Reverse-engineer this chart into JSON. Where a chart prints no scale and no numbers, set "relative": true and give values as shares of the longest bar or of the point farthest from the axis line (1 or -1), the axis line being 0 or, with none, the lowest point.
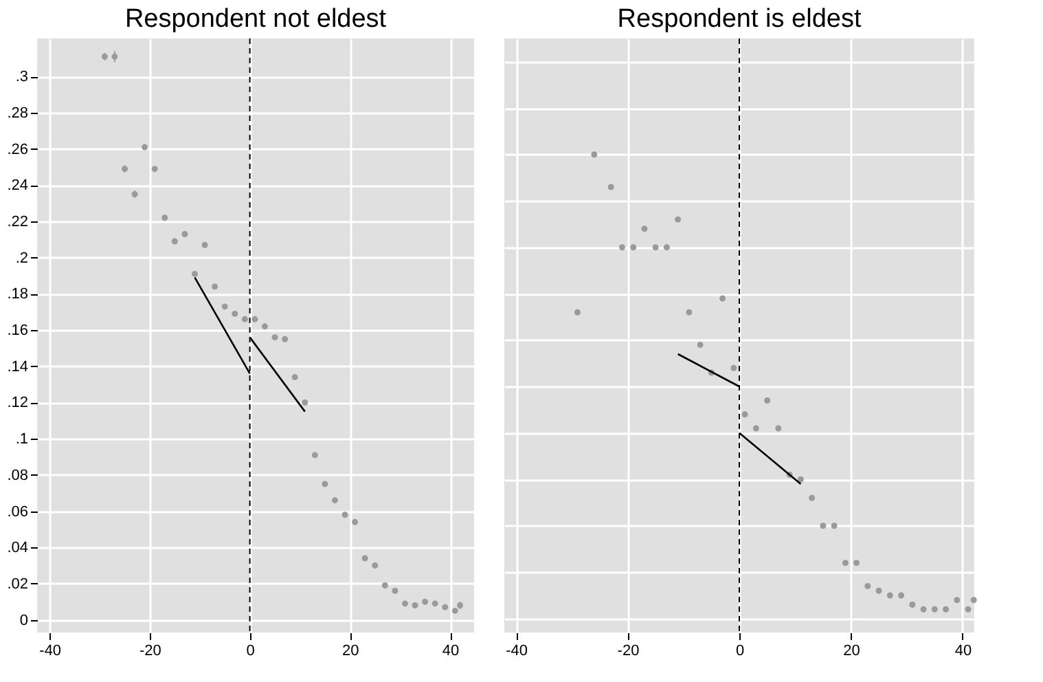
{
  "chart_data": [
    {
      "type": "scatter",
      "title": "Respondent not eldest",
      "marker": "circle",
      "grid": true,
      "xlim": [
        -42.5,
        44.8
      ],
      "ylim": [
        -0.007,
        0.321
      ],
      "xticks": [
        -40,
        -20,
        0,
        20,
        40
      ],
      "yticks": [
        0,
        {
          "value": 0.02,
          "label": ".02"
        },
        {
          "value": 0.04,
          "label": ".04"
        },
        {
          "value": 0.06,
          "label": ".06"
        },
        {
          "value": 0.08,
          "label": ".08"
        },
        {
          "value": 0.1,
          "label": ".1"
        },
        {
          "value": 0.12,
          "label": ".12"
        },
        {
          "value": 0.14,
          "label": ".14"
        },
        {
          "value": 0.16,
          "label": ".16"
        },
        {
          "value": 0.18,
          "label": ".18"
        },
        {
          "value": 0.2,
          "label": ".2"
        },
        {
          "value": 0.22,
          "label": ".22"
        },
        {
          "value": 0.24,
          "label": ".24"
        },
        {
          "value": 0.26,
          "label": ".26"
        },
        {
          "value": 0.28,
          "label": ".28"
        },
        {
          "value": 0.3,
          "label": ".3"
        }
      ],
      "ref_lines": [
        {
          "axis": "x",
          "value": 0,
          "color": "#000000",
          "line_style": "dashed"
        }
      ],
      "series": [
        {
          "color": "#9a9a9a",
          "x": [
            -29,
            -27,
            -25,
            -23,
            -21,
            -19,
            -17,
            -15,
            -13,
            -11,
            -9,
            -7,
            -5,
            -3,
            -1,
            1,
            3,
            5,
            7,
            9,
            11,
            13,
            15,
            17,
            19,
            21,
            23,
            25,
            27,
            29,
            31,
            33,
            35,
            37,
            39,
            41,
            42
          ],
          "values": [
            0.311,
            0.311,
            0.249,
            0.235,
            0.261,
            0.249,
            0.222,
            0.209,
            0.213,
            0.191,
            0.207,
            0.184,
            0.173,
            0.169,
            0.166,
            0.166,
            0.162,
            0.156,
            0.155,
            0.134,
            0.12,
            0.091,
            0.075,
            0.066,
            0.058,
            0.054,
            0.034,
            0.03,
            0.019,
            0.016,
            0.009,
            0.008,
            0.01,
            0.009,
            0.007,
            0.005,
            0.008
          ],
          "errors": [
            0.002,
            0.003,
            0.002,
            0.002,
            0.001,
            0.001,
            0.001,
            0.001,
            0.001,
            0.001,
            0.001,
            0.001,
            0.001,
            0.001,
            0.001,
            0.001,
            0.001,
            0.001,
            0.001,
            0.001,
            0.001,
            0.001,
            0.001,
            0.001,
            0.001,
            0.001,
            0.001,
            0.001,
            0.001,
            0.001,
            0.001,
            0.001,
            0.001,
            0.001,
            0.001,
            0.001,
            0.002
          ]
        },
        {
          "type": "line",
          "marker": "none",
          "line_style": "solid",
          "color": "#000000",
          "x": [
            -11,
            0
          ],
          "values": [
            0.189,
            0.136
          ]
        },
        {
          "type": "line",
          "marker": "none",
          "line_style": "solid",
          "color": "#000000",
          "x": [
            0,
            11
          ],
          "values": [
            0.156,
            0.115
          ]
        }
      ]
    },
    {
      "type": "scatter",
      "title": "Respondent is eldest",
      "marker": "circle",
      "grid": true,
      "relative": true,
      "tick_labels": "x",
      "xlim": [
        -42.1,
        42.1
      ],
      "xticks": [
        -40,
        -20,
        0,
        20,
        40
      ],
      "ref_lines": [
        {
          "axis": "x",
          "value": 0,
          "color": "#000000",
          "line_style": "dashed"
        }
      ],
      "series": [
        {
          "color": "#9a9a9a",
          "x": [
            -29,
            -26,
            -23,
            -21,
            -19,
            -17,
            -15,
            -13,
            -11,
            -9,
            -7,
            -5,
            -3,
            -1,
            1,
            3,
            5,
            7,
            9,
            11,
            13,
            15,
            17,
            19,
            21,
            23,
            25,
            27,
            29,
            31,
            33,
            35,
            37,
            39,
            41,
            42
          ],
          "values": [
            0.66,
            1,
            0.93,
            0.8,
            0.8,
            0.84,
            0.8,
            0.8,
            0.86,
            0.66,
            0.59,
            0.53,
            0.69,
            0.54,
            0.44,
            0.41,
            0.47,
            0.41,
            0.31,
            0.3,
            0.26,
            0.2,
            0.2,
            0.12,
            0.12,
            0.07,
            0.06,
            0.05,
            0.05,
            0.03,
            0.02,
            0.02,
            0.02,
            0.04,
            0.02,
            0.04
          ]
        },
        {
          "type": "line",
          "marker": "none",
          "line_style": "solid",
          "color": "#000000",
          "x": [
            -11,
            0
          ],
          "values": [
            0.57,
            0.5
          ]
        },
        {
          "type": "line",
          "marker": "none",
          "line_style": "solid",
          "color": "#000000",
          "x": [
            0,
            11
          ],
          "values": [
            0.4,
            0.29
          ]
        }
      ]
    }
  ]
}
